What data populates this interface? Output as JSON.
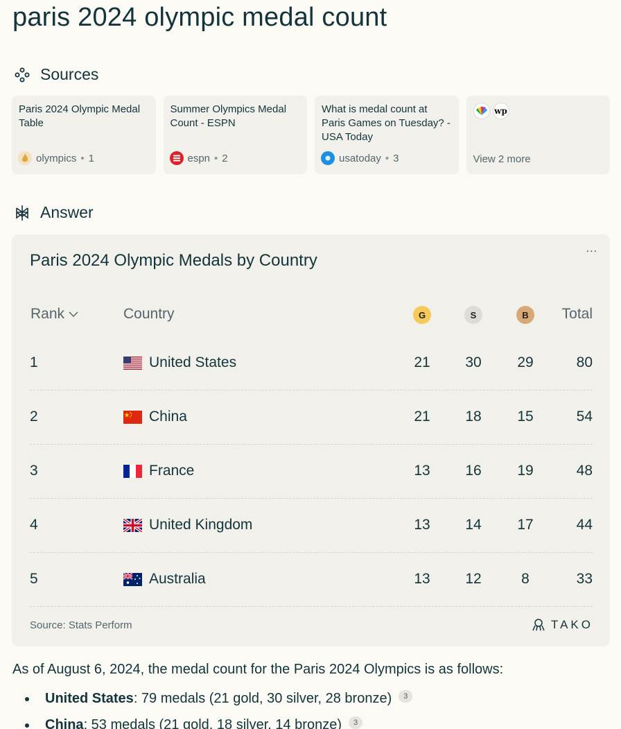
{
  "query": "paris 2024 olympic medal count",
  "sections": {
    "sources": "Sources",
    "answer": "Answer"
  },
  "sources": [
    {
      "title": "Paris 2024 Olympic Medal Table",
      "site": "olympics",
      "index": "1",
      "icon": "olympics-flame-icon"
    },
    {
      "title": "Summer Olympics Medal Count - ESPN",
      "site": "espn",
      "index": "2",
      "icon": "espn-icon"
    },
    {
      "title": "What is medal count at Paris Games on Tuesday? - USA Today",
      "site": "usatoday",
      "index": "3",
      "icon": "usatoday-icon"
    }
  ],
  "view_more": "View 2 more",
  "table": {
    "title": "Paris 2024 Olympic Medals by Country",
    "more": "...",
    "headers": {
      "rank": "Rank",
      "country": "Country",
      "gold": "G",
      "silver": "S",
      "bronze": "B",
      "total": "Total"
    },
    "rows": [
      {
        "rank": "1",
        "country": "United States",
        "gold": "21",
        "silver": "30",
        "bronze": "29",
        "total": "80"
      },
      {
        "rank": "2",
        "country": "China",
        "gold": "21",
        "silver": "18",
        "bronze": "15",
        "total": "54"
      },
      {
        "rank": "3",
        "country": "France",
        "gold": "13",
        "silver": "16",
        "bronze": "19",
        "total": "48"
      },
      {
        "rank": "4",
        "country": "United Kingdom",
        "gold": "13",
        "silver": "14",
        "bronze": "17",
        "total": "44"
      },
      {
        "rank": "5",
        "country": "Australia",
        "gold": "13",
        "silver": "12",
        "bronze": "8",
        "total": "33"
      }
    ],
    "source_note": "Source: Stats Perform",
    "brand": "TAKO"
  },
  "summary": "As of August 6, 2024, the medal count for the Paris 2024 Olympics is as follows:",
  "bullets": [
    {
      "country": "United States",
      "text": ": 79 medals (21 gold, 30 silver, 28 bronze)",
      "cite": "3"
    },
    {
      "country": "China",
      "text": ": 53 medals (21 gold, 18 silver, 14 bronze)",
      "cite": "3"
    }
  ],
  "colors": {
    "gold": "#f5c95a",
    "silver": "#dedcd6",
    "bronze": "#d7a977",
    "accent": "#13343b"
  }
}
